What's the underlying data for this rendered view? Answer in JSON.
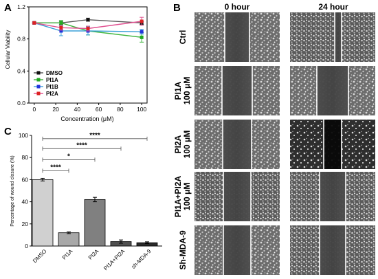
{
  "chart_data": [
    {
      "type": "line",
      "panel_label": "A",
      "ylabel": "Cellular Viability",
      "xlabel": "Concentration (μM)",
      "x": [
        0,
        25,
        50,
        100
      ],
      "xticks": [
        "0",
        "20",
        "40",
        "60",
        "80",
        "100"
      ],
      "xtick_values": [
        0,
        20,
        40,
        60,
        80,
        100
      ],
      "yticks": [
        "0.0",
        "0.4",
        "0.8",
        "1.2"
      ],
      "ytick_values": [
        0.0,
        0.4,
        0.8,
        1.2
      ],
      "xlim": [
        -5,
        105
      ],
      "ylim": [
        0,
        1.2
      ],
      "legend_position": "bottom-left",
      "series": [
        {
          "name": "DMSO",
          "color": "#555555",
          "marker": "#111111",
          "values": [
            1.0,
            1.0,
            1.04,
            1.0
          ],
          "err": [
            0.01,
            0.02,
            0.02,
            0.02
          ]
        },
        {
          "name": "PI1A",
          "color": "#3cb43c",
          "marker": "#22aa22",
          "values": [
            1.0,
            1.0,
            0.9,
            0.82
          ],
          "err": [
            0.01,
            0.03,
            0.05,
            0.06
          ]
        },
        {
          "name": "PI1B",
          "color": "#3aa0d8",
          "marker": "#2233dd",
          "values": [
            1.0,
            0.9,
            0.9,
            0.89
          ],
          "err": [
            0.01,
            0.06,
            0.05,
            0.03
          ]
        },
        {
          "name": "PI2A",
          "color": "#e05090",
          "marker": "#dd2222",
          "values": [
            1.0,
            0.94,
            0.93,
            1.02
          ],
          "err": [
            0.01,
            0.03,
            0.03,
            0.05
          ]
        }
      ]
    },
    {
      "type": "bar",
      "panel_label": "C",
      "ylabel": "Percentage of wound closure (%)",
      "categories": [
        "DMSO",
        "PI1A",
        "PI2A",
        "PI1A+PI2A",
        "sh-MDA-9"
      ],
      "values": [
        60,
        12,
        42,
        4,
        3
      ],
      "err": [
        1.2,
        0.8,
        2.0,
        1.5,
        0.8
      ],
      "colors": [
        "#d0d0d0",
        "#a8a8a8",
        "#808080",
        "#505050",
        "#2a2a2a"
      ],
      "yticks": [
        "0",
        "20",
        "40",
        "60",
        "80",
        "100"
      ],
      "ytick_values": [
        0,
        20,
        40,
        60,
        80,
        100
      ],
      "ylim": [
        0,
        100
      ],
      "significance": [
        {
          "from": 0,
          "to": 1,
          "label": "****",
          "y": 68
        },
        {
          "from": 0,
          "to": 2,
          "label": "*",
          "y": 78
        },
        {
          "from": 0,
          "to": 3,
          "label": "****",
          "y": 88
        },
        {
          "from": 0,
          "to": 4,
          "label": "****",
          "y": 97
        }
      ]
    }
  ],
  "panel_b": {
    "panel_label": "B",
    "columns": [
      "0 hour",
      "24 hour"
    ],
    "rows": [
      {
        "line1": "Ctrl",
        "line2": ""
      },
      {
        "line1": "PI1A",
        "line2": "100 μM"
      },
      {
        "line1": "PI2A",
        "line2": "100 μM"
      },
      {
        "line1": "PI1A+PI2A",
        "line2": "100 μM"
      },
      {
        "line1": "Sh-MDA-9",
        "line2": ""
      }
    ]
  }
}
